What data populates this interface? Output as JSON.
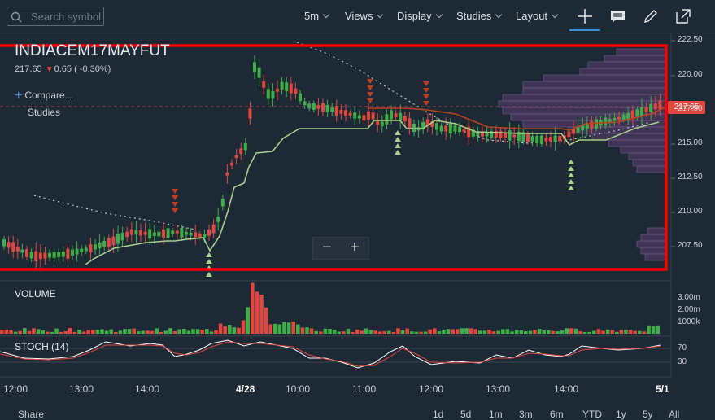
{
  "toolbar": {
    "search_placeholder": "Search symbol",
    "interval": "5m",
    "views": "Views",
    "display": "Display",
    "studies": "Studies",
    "layout": "Layout"
  },
  "quote": {
    "symbol": "INDIACEM17MAYFUT",
    "last": "217.65",
    "change": "0.65",
    "change_pct": "( -0.30%)",
    "compare": "Compare...",
    "studies_label": "Studies",
    "price_tag": "217.65"
  },
  "price_axis": [
    "222.50",
    "220.00",
    "217.50",
    "215.00",
    "212.50",
    "210.00",
    "207.50"
  ],
  "volume": {
    "label": "VOLUME",
    "ticks": [
      "3.00m",
      "2.00m",
      "1000k"
    ]
  },
  "stoch": {
    "label": "STOCH (14)",
    "ticks": [
      "70",
      "30"
    ]
  },
  "time_axis": [
    "12:00",
    "13:00",
    "14:00",
    "4/28",
    "10:00",
    "11:00",
    "12:00",
    "13:00",
    "14:00",
    "5/1"
  ],
  "bottom": {
    "share": "Share",
    "ranges": [
      "1d",
      "5d",
      "1m",
      "3m",
      "6m",
      "YTD",
      "1y",
      "5y",
      "All"
    ]
  },
  "colors": {
    "background": "#1e2936",
    "up": "#3fae49",
    "down": "#e2473f",
    "highlight_box": "#ff0000",
    "sma": "#a8cf8c",
    "profile": "#6a4a7e"
  }
}
